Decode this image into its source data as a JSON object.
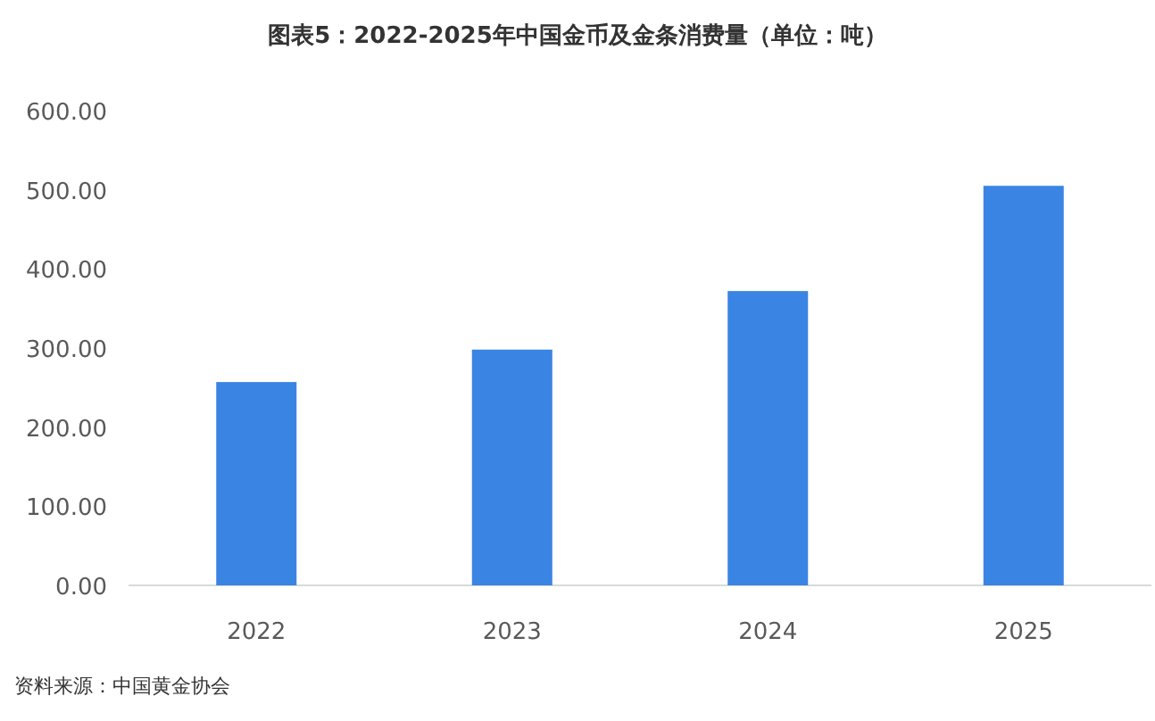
{
  "chart_data": {
    "type": "bar",
    "title": "图表5：2022-2025年中国金币及金条消费量（单位：吨）",
    "categories": [
      "2022",
      "2023",
      "2024",
      "2025"
    ],
    "values": [
      257,
      298,
      372,
      505
    ],
    "color": "#3a84e3",
    "ylim": [
      0,
      600
    ],
    "yticks": [
      {
        "value": 0,
        "label": "0.00"
      },
      {
        "value": 100,
        "label": "100.00"
      },
      {
        "value": 200,
        "label": "200.00"
      },
      {
        "value": 300,
        "label": "300.00"
      },
      {
        "value": 400,
        "label": "400.00"
      },
      {
        "value": 500,
        "label": "500.00"
      },
      {
        "value": 600,
        "label": "600.00"
      }
    ],
    "annotations": [
      "资料来源：中国黄金协会"
    ]
  }
}
